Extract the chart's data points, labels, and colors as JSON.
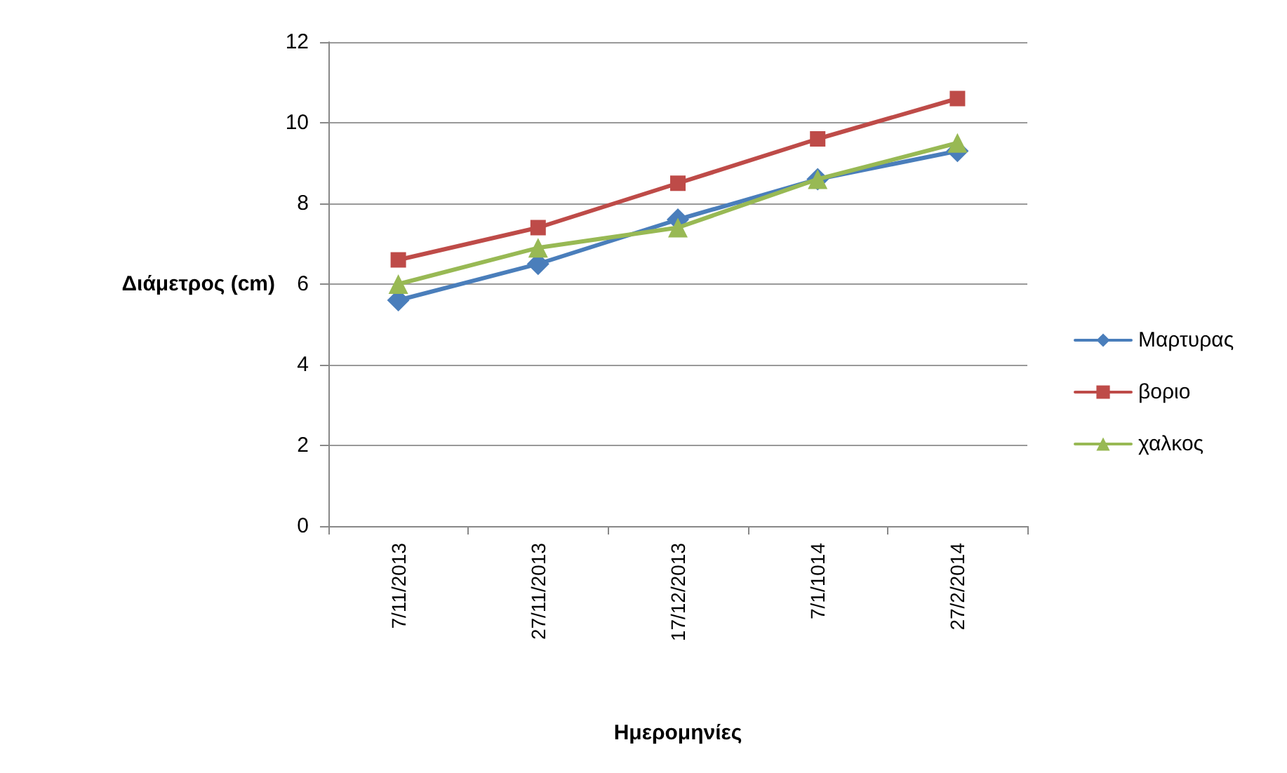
{
  "chart_data": {
    "type": "line",
    "xlabel": "Ημερομηνίες",
    "ylabel": "Διάμετρος (cm)",
    "categories": [
      "7/11/2013",
      "27/11/2013",
      "17/12/2013",
      "7/1/1014",
      "27/2/2014"
    ],
    "series": [
      {
        "name": "Μαρτυρας",
        "color": "#4a7ebb",
        "marker": "diamond",
        "values": [
          5.6,
          6.5,
          7.6,
          8.6,
          9.3
        ]
      },
      {
        "name": "βοριο",
        "color": "#be4b48",
        "marker": "square",
        "values": [
          6.6,
          7.4,
          8.5,
          9.6,
          10.6
        ]
      },
      {
        "name": "χαλκος",
        "color": "#98b954",
        "marker": "triangle",
        "values": [
          6.0,
          6.9,
          7.4,
          8.6,
          9.5
        ]
      }
    ],
    "ylim": [
      0,
      12
    ],
    "yticks": [
      0,
      2,
      4,
      6,
      8,
      10,
      12
    ],
    "grid": "y",
    "legend": "right",
    "line_style": "solid"
  }
}
